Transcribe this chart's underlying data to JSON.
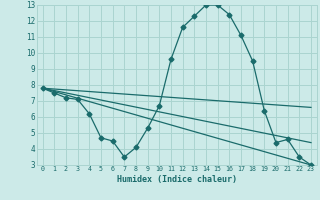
{
  "title": "",
  "xlabel": "Humidex (Indice chaleur)",
  "background_color": "#cceae8",
  "grid_color": "#aad4d0",
  "line_color": "#1a6b6b",
  "xlim": [
    -0.5,
    23.5
  ],
  "ylim": [
    3,
    13
  ],
  "xticks": [
    0,
    1,
    2,
    3,
    4,
    5,
    6,
    7,
    8,
    9,
    10,
    11,
    12,
    13,
    14,
    15,
    16,
    17,
    18,
    19,
    20,
    21,
    22,
    23
  ],
  "yticks": [
    3,
    4,
    5,
    6,
    7,
    8,
    9,
    10,
    11,
    12,
    13
  ],
  "series1_x": [
    0,
    1,
    2,
    3,
    4,
    5,
    6,
    7,
    8,
    9,
    10,
    11,
    12,
    13,
    14,
    15,
    16,
    17,
    18,
    19,
    20,
    21,
    22,
    23
  ],
  "series1_y": [
    7.8,
    7.5,
    7.2,
    7.1,
    6.2,
    4.7,
    4.5,
    3.5,
    4.1,
    5.3,
    6.7,
    9.6,
    11.6,
    12.3,
    13.0,
    13.0,
    12.4,
    11.1,
    9.5,
    6.4,
    4.4,
    4.6,
    3.5,
    3.0
  ],
  "series2_x": [
    0,
    23
  ],
  "series2_y": [
    7.8,
    3.0
  ],
  "series3_x": [
    0,
    23
  ],
  "series3_y": [
    7.8,
    6.6
  ],
  "series4_x": [
    0,
    23
  ],
  "series4_y": [
    7.8,
    4.4
  ]
}
